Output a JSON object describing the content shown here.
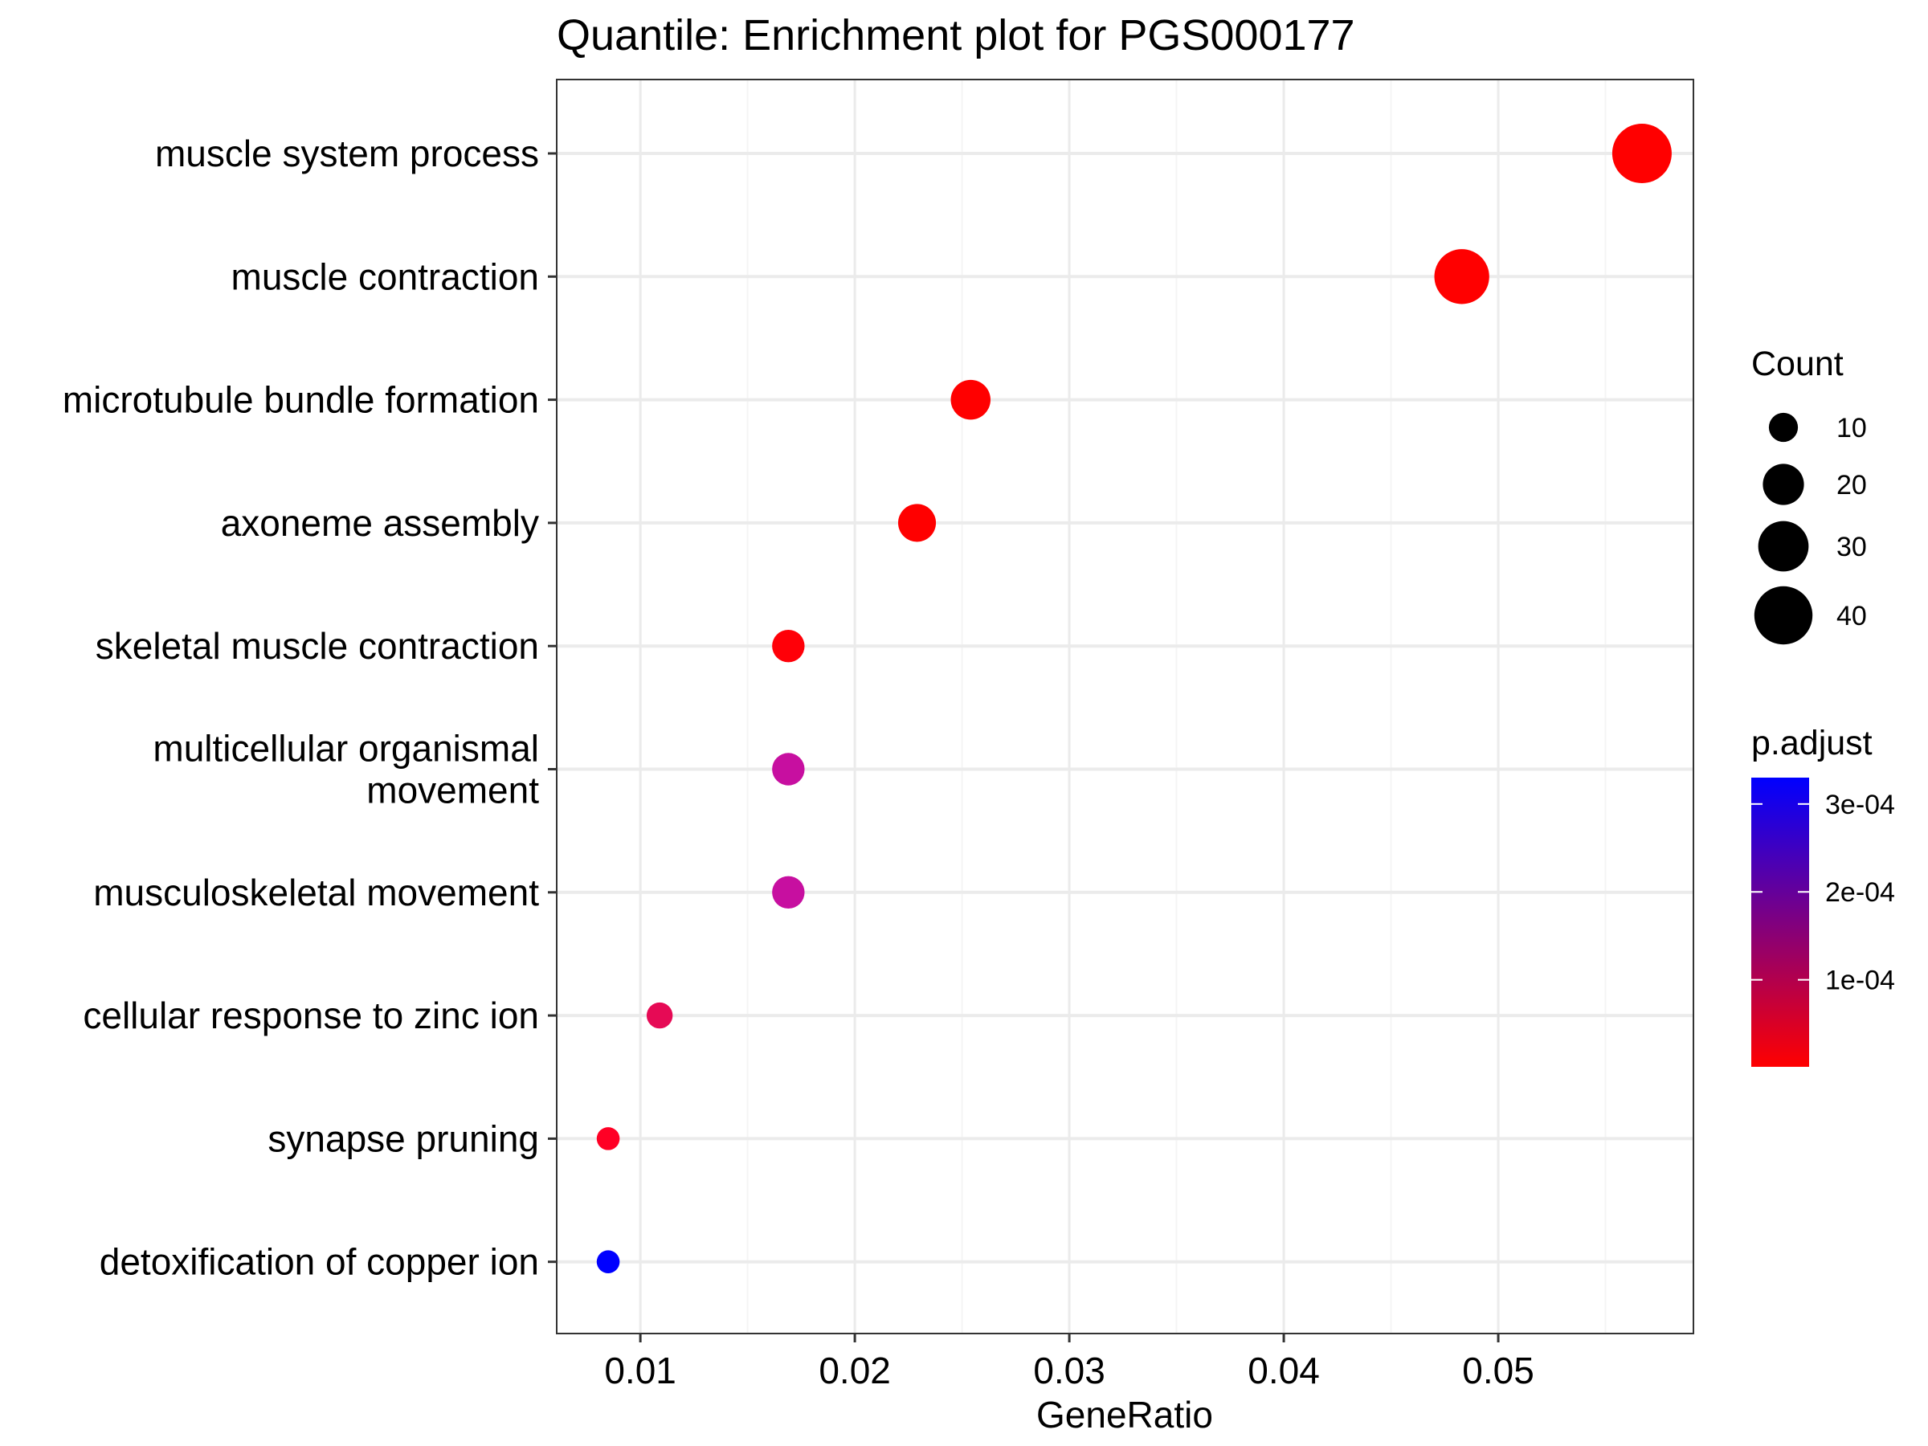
{
  "chart_data": {
    "type": "scatter",
    "title": "Quantile: Enrichment plot for PGS000177",
    "xlabel": "GeneRatio",
    "ylabel": "",
    "xlim": [
      0.0061,
      0.0591
    ],
    "x_ticks": [
      0.01,
      0.02,
      0.03,
      0.04,
      0.05
    ],
    "x_tick_labels": [
      "0.01",
      "0.02",
      "0.03",
      "0.04",
      "0.05"
    ],
    "grid": true,
    "categories": [
      "muscle system process",
      "muscle contraction",
      "microtubule bundle formation",
      "axoneme assembly",
      "skeletal muscle contraction",
      "multicellular organismal\nmovement",
      "musculoskeletal movement",
      "cellular response to zinc ion",
      "synapse pruning",
      "detoxification of copper ion"
    ],
    "points": [
      {
        "term": "muscle system process",
        "gene_ratio": 0.0567,
        "count": 47,
        "p_adjust": 1e-06,
        "color": "#FF0000"
      },
      {
        "term": "muscle contraction",
        "gene_ratio": 0.0483,
        "count": 40,
        "p_adjust": 1e-06,
        "color": "#FF0000"
      },
      {
        "term": "microtubule bundle formation",
        "gene_ratio": 0.0254,
        "count": 21,
        "p_adjust": 2e-06,
        "color": "#FF0000"
      },
      {
        "term": "axoneme assembly",
        "gene_ratio": 0.0229,
        "count": 19,
        "p_adjust": 2e-06,
        "color": "#FF0000"
      },
      {
        "term": "skeletal muscle contraction",
        "gene_ratio": 0.0169,
        "count": 14,
        "p_adjust": 3e-06,
        "color": "#FF0008"
      },
      {
        "term": "multicellular organismal\nmovement",
        "gene_ratio": 0.0169,
        "count": 14,
        "p_adjust": 0.00019,
        "color": "#C70FA0"
      },
      {
        "term": "musculoskeletal movement",
        "gene_ratio": 0.0169,
        "count": 14,
        "p_adjust": 0.00019,
        "color": "#C70FA0"
      },
      {
        "term": "cellular response to zinc ion",
        "gene_ratio": 0.0109,
        "count": 9,
        "p_adjust": 9e-05,
        "color": "#E60A55"
      },
      {
        "term": "synapse pruning",
        "gene_ratio": 0.0085,
        "count": 7,
        "p_adjust": 2e-05,
        "color": "#FF0025"
      },
      {
        "term": "detoxification of copper ion",
        "gene_ratio": 0.0085,
        "count": 7,
        "p_adjust": 0.00032,
        "color": "#0000FF"
      }
    ],
    "legend_count": {
      "title": "Count",
      "entries": [
        10,
        20,
        30,
        40
      ],
      "labels": [
        "10",
        "20",
        "30",
        "40"
      ]
    },
    "legend_color": {
      "title": "p.adjust",
      "range": [
        1e-06,
        0.00033
      ],
      "ticks": [
        0.0001,
        0.0002,
        0.0003
      ],
      "tick_labels": [
        "1e-04",
        "2e-04",
        "3e-04"
      ],
      "low_color": "#FF0000",
      "high_color": "#0000FF"
    },
    "colors": {
      "panel_border": "#333333",
      "grid_major": "#EBEBEB",
      "grid_minor": "#F5F5F5"
    }
  }
}
